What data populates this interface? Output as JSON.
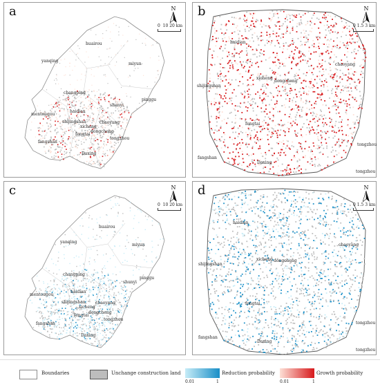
{
  "panels": {
    "a": {
      "letter": "a",
      "scale": [
        "0",
        "10",
        "20 km"
      ]
    },
    "b": {
      "letter": "b",
      "scale": [
        "0",
        "1.5",
        "3 km"
      ]
    },
    "c": {
      "letter": "c",
      "scale": [
        "0",
        "10",
        "20 km"
      ]
    },
    "d": {
      "letter": "d",
      "scale": [
        "0",
        "1.5",
        "3 km"
      ]
    }
  },
  "north_label": "N",
  "places_region": {
    "huairou": "huairou",
    "yanqing": "yanqing",
    "miyun": "miyun",
    "changping": "changping",
    "shunyi": "shunyi",
    "pinggu": "pinggu",
    "mentougou": "mentougou",
    "haidian": "haidian",
    "shijingshan": "shijingshan",
    "xicheng": "xicheng",
    "chaoyang": "chaoyang",
    "dongcheng": "dongcheng",
    "fengtai": "fengtai",
    "tongzhou": "tongzhou",
    "fangshan": "fangshan",
    "daxing": "Daxing"
  },
  "places_city": {
    "haidian": "haidian",
    "chaoyang": "chaoyang",
    "shijingshan": "shijingshan",
    "xicheng": "xicheng",
    "dongcheng": "dongcheng",
    "fengtai": "fengtai",
    "fangshan": "fangshan",
    "daxing": "Daxing",
    "tongzhou": "tongzhou"
  },
  "legend": {
    "boundaries": "Boundaries",
    "unchanged": "Unchange construction land",
    "reduction": "Reduction probability",
    "growth": "Growth probability",
    "min": "0.01",
    "max": "1"
  },
  "colors": {
    "growth_low": "#fde0d6",
    "growth_high": "#d7191c",
    "reduction_low": "#c7ecf7",
    "reduction_high": "#1a8fc7",
    "unchanged": "#bdbdbd",
    "boundary": "#8c8c8c"
  }
}
